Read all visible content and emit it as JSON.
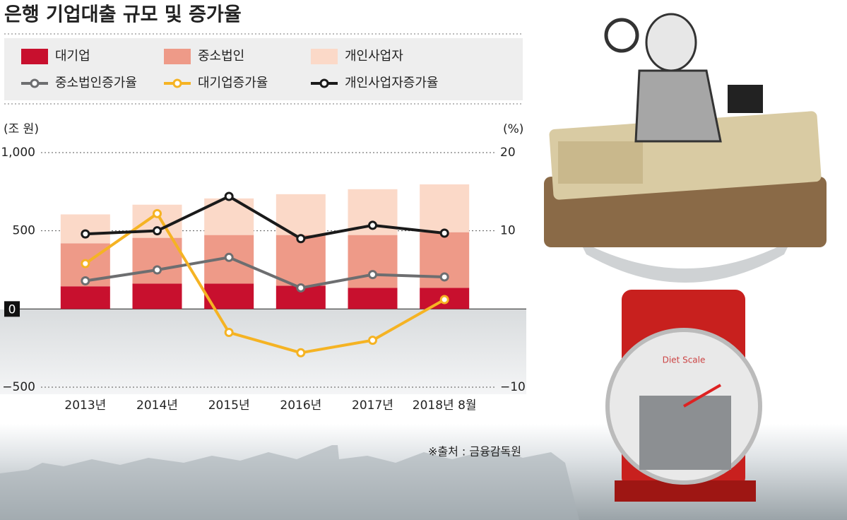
{
  "chart_data": {
    "type": "bar",
    "stacked": true,
    "title": "은행 기업대출 규모 및 증가율",
    "y_label": "(조 원)",
    "y2_label": "(%)",
    "source": "※출처 : 금융감독원",
    "categories": [
      "2013년",
      "2014년",
      "2015년",
      "2016년",
      "2017년",
      "2018년 8월"
    ],
    "series": [
      {
        "name": "대기업",
        "type": "bar",
        "color": "#c8102e",
        "values": [
          145,
          162,
          162,
          149,
          135,
          135
        ]
      },
      {
        "name": "중소법인",
        "type": "bar",
        "color": "#ee9a88",
        "values": [
          275,
          293,
          311,
          324,
          338,
          356
        ]
      },
      {
        "name": "개인사업자",
        "type": "bar",
        "color": "#fbd9c8",
        "values": [
          185,
          212,
          234,
          261,
          293,
          306
        ]
      },
      {
        "name": "중소법인증가율",
        "type": "line",
        "axis": "y2",
        "color": "#6d6e70",
        "values": [
          3.6,
          5.0,
          6.6,
          2.7,
          4.4,
          4.1
        ]
      },
      {
        "name": "대기업증가율",
        "type": "line",
        "axis": "y2",
        "color": "#f5b323",
        "values": [
          5.8,
          12.2,
          -3.0,
          -5.6,
          -4.0,
          1.2
        ]
      },
      {
        "name": "개인사업자증가율",
        "type": "line",
        "axis": "y2",
        "color": "#1a1a1a",
        "values": [
          9.6,
          10.0,
          14.4,
          9.0,
          10.7,
          9.7
        ]
      }
    ],
    "ylim": [
      -500,
      1000
    ],
    "yticks": [
      {
        "value": 1000,
        "label": "1,000"
      },
      500,
      0,
      {
        "value": -500,
        "label": "−500"
      }
    ],
    "y2lim": [
      -10,
      20
    ],
    "y2ticks": [
      20,
      10,
      {
        "value": -10,
        "label": "−10"
      }
    ],
    "grid": true
  }
}
